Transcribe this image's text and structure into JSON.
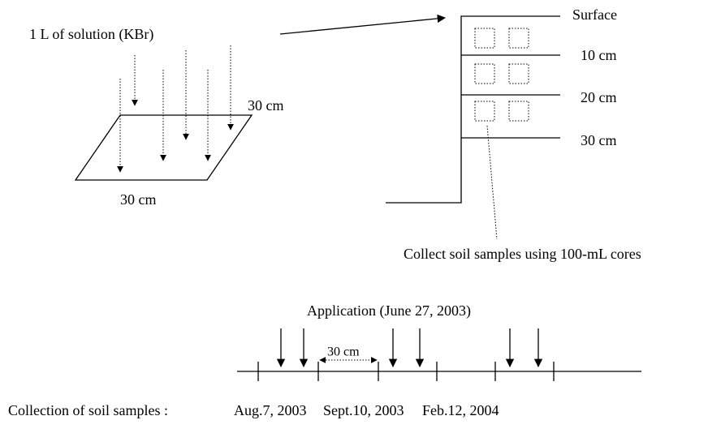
{
  "application": {
    "label": "1 L of solution (KBr)",
    "top_width": "30 cm",
    "bottom_width": "30 cm"
  },
  "profile": {
    "depths": [
      "Surface",
      "10 cm",
      "20 cm",
      "30 cm"
    ],
    "note": "Collect soil samples using 100-mL cores"
  },
  "timeline": {
    "title": "Application (June 27, 2003)",
    "spacing": "30 cm",
    "label": "Collection of soil samples :",
    "dates": [
      "Aug.7, 2003",
      "Sept.10, 2003",
      "Feb.12, 2004"
    ]
  }
}
